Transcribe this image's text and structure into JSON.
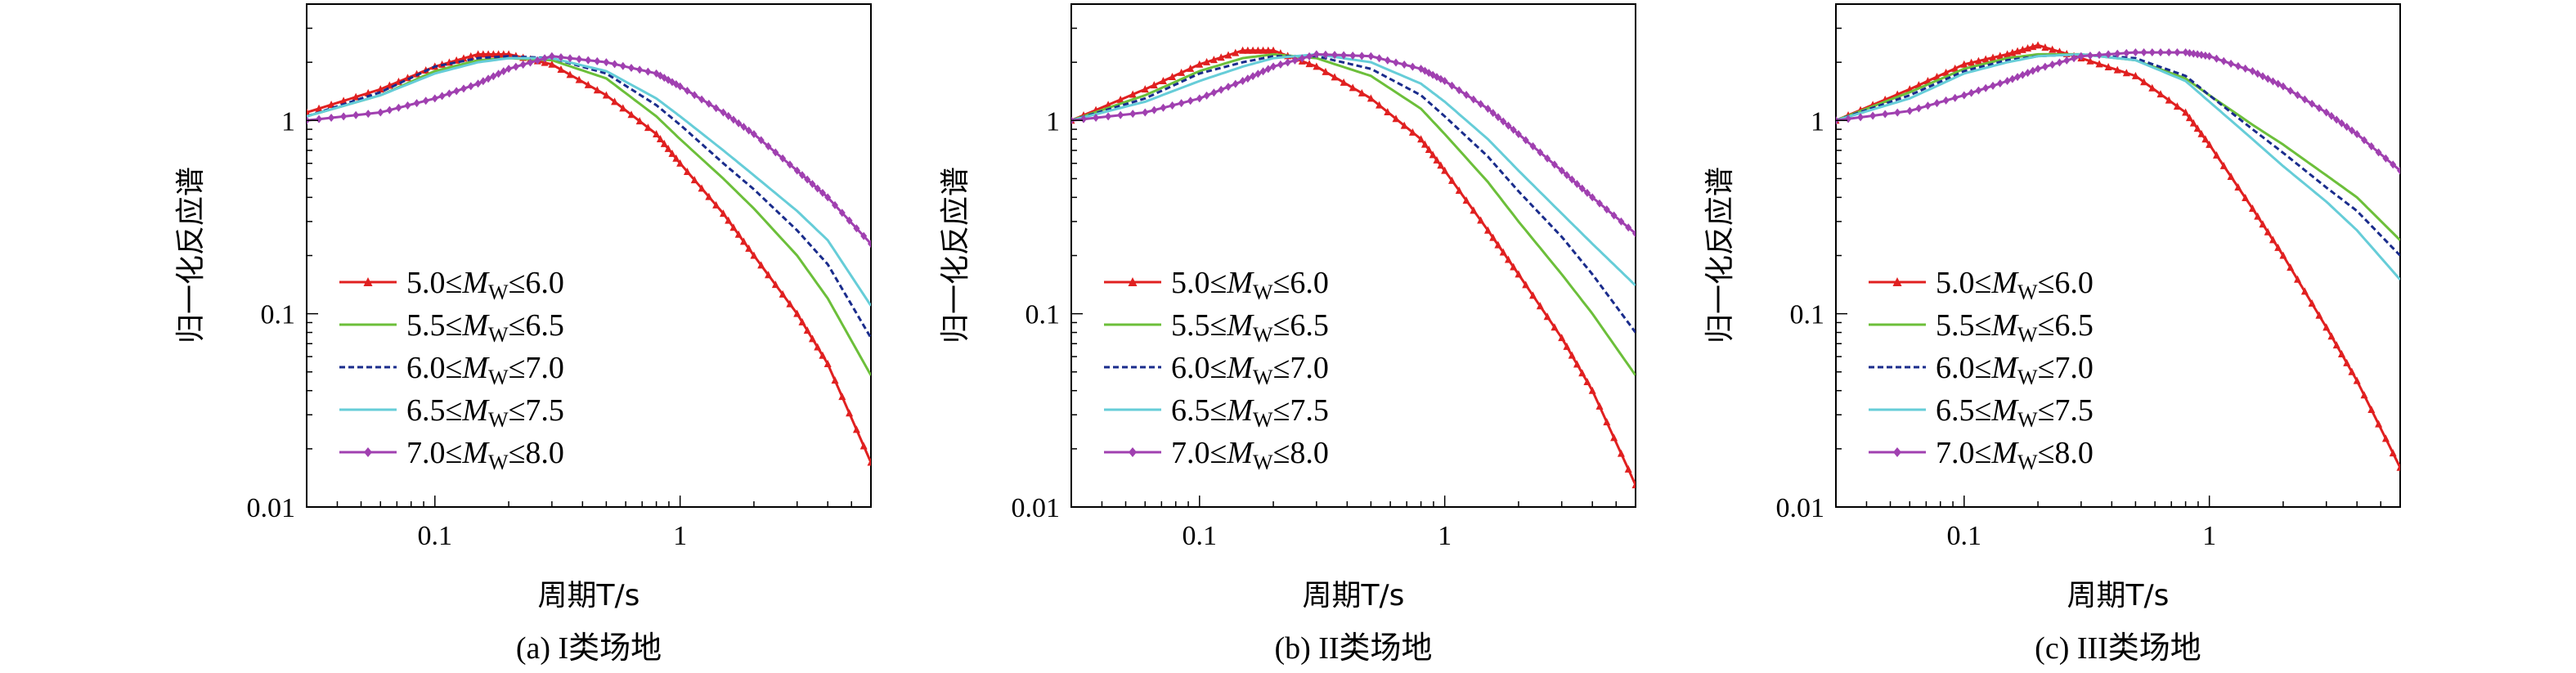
{
  "colors": {
    "red": "#e02020",
    "green": "#6cbf3a",
    "navy": "#1a2c8c",
    "cyan": "#66cdd8",
    "purple": "#a040b0"
  },
  "chart_data": [
    {
      "type": "line",
      "caption": "(a) I类场地",
      "xlabel": "周期T/s",
      "ylabel": "归一化反应谱",
      "x_scale": "log",
      "y_scale": "log",
      "xlim": [
        0.03,
        6
      ],
      "ylim": [
        0.01,
        4
      ],
      "xticks": [
        {
          "v": 0.1,
          "label": "0.1"
        },
        {
          "v": 1,
          "label": "1"
        }
      ],
      "yticks": [
        {
          "v": 0.01,
          "label": "0.01"
        },
        {
          "v": 0.1,
          "label": "0.1"
        },
        {
          "v": 1,
          "label": "1"
        }
      ],
      "legend_position": "lower-left",
      "series": [
        {
          "name": "5.0≤MW≤6.0",
          "color": "red",
          "marker": "triangle",
          "x": [
            0.03,
            0.06,
            0.1,
            0.15,
            0.2,
            0.3,
            0.5,
            0.8,
            1,
            1.5,
            2,
            3,
            4,
            6
          ],
          "y": [
            1.1,
            1.45,
            1.9,
            2.2,
            2.2,
            1.95,
            1.35,
            0.85,
            0.6,
            0.33,
            0.2,
            0.1,
            0.055,
            0.017
          ]
        },
        {
          "name": "5.5≤MW≤6.5",
          "color": "green",
          "marker": "none",
          "x": [
            0.03,
            0.06,
            0.1,
            0.15,
            0.2,
            0.3,
            0.5,
            0.8,
            1,
            1.5,
            2,
            3,
            4,
            6
          ],
          "y": [
            1.05,
            1.35,
            1.8,
            2.05,
            2.1,
            2.05,
            1.65,
            1.05,
            0.8,
            0.5,
            0.35,
            0.2,
            0.12,
            0.048
          ]
        },
        {
          "name": "6.0≤MW≤7.0",
          "color": "navy",
          "marker": "dash",
          "x": [
            0.03,
            0.06,
            0.1,
            0.15,
            0.2,
            0.3,
            0.5,
            0.8,
            1,
            1.5,
            2,
            3,
            4,
            6
          ],
          "y": [
            1.05,
            1.4,
            1.9,
            2.1,
            2.15,
            2.1,
            1.75,
            1.2,
            0.95,
            0.6,
            0.44,
            0.27,
            0.18,
            0.075
          ]
        },
        {
          "name": "6.5≤MW≤7.5",
          "color": "cyan",
          "marker": "none",
          "x": [
            0.03,
            0.06,
            0.1,
            0.15,
            0.2,
            0.3,
            0.5,
            0.8,
            1,
            1.5,
            2,
            3,
            4,
            6
          ],
          "y": [
            1.05,
            1.35,
            1.75,
            2.0,
            2.1,
            2.1,
            1.8,
            1.3,
            1.05,
            0.7,
            0.52,
            0.34,
            0.24,
            0.11
          ]
        },
        {
          "name": "7.0≤MW≤8.0",
          "color": "purple",
          "marker": "diamond",
          "x": [
            0.03,
            0.06,
            0.1,
            0.15,
            0.2,
            0.3,
            0.5,
            0.8,
            1,
            1.5,
            2,
            3,
            4,
            6
          ],
          "y": [
            1.0,
            1.1,
            1.3,
            1.55,
            1.85,
            2.15,
            2.0,
            1.75,
            1.5,
            1.1,
            0.85,
            0.55,
            0.4,
            0.23
          ]
        }
      ]
    },
    {
      "type": "line",
      "caption": "(b) II类场地",
      "xlabel": "周期T/s",
      "ylabel": "归一化反应谱",
      "x_scale": "log",
      "y_scale": "log",
      "xlim": [
        0.03,
        6
      ],
      "ylim": [
        0.01,
        4
      ],
      "xticks": [
        {
          "v": 0.1,
          "label": "0.1"
        },
        {
          "v": 1,
          "label": "1"
        }
      ],
      "yticks": [
        {
          "v": 0.01,
          "label": "0.01"
        },
        {
          "v": 0.1,
          "label": "0.1"
        },
        {
          "v": 1,
          "label": "1"
        }
      ],
      "legend_position": "lower-left",
      "series": [
        {
          "name": "5.0≤MW≤6.0",
          "color": "red",
          "marker": "triangle",
          "x": [
            0.03,
            0.06,
            0.1,
            0.15,
            0.2,
            0.3,
            0.5,
            0.8,
            1,
            1.5,
            2,
            3,
            4,
            6
          ],
          "y": [
            1.0,
            1.45,
            1.95,
            2.3,
            2.3,
            1.9,
            1.3,
            0.8,
            0.55,
            0.27,
            0.16,
            0.075,
            0.04,
            0.013
          ]
        },
        {
          "name": "5.5≤MW≤6.5",
          "color": "green",
          "marker": "none",
          "x": [
            0.03,
            0.06,
            0.1,
            0.15,
            0.2,
            0.3,
            0.5,
            0.8,
            1,
            1.5,
            2,
            3,
            4,
            6
          ],
          "y": [
            1.0,
            1.35,
            1.8,
            2.1,
            2.2,
            2.1,
            1.7,
            1.15,
            0.85,
            0.48,
            0.3,
            0.16,
            0.1,
            0.048
          ]
        },
        {
          "name": "6.0≤MW≤7.0",
          "color": "navy",
          "marker": "dash",
          "x": [
            0.03,
            0.06,
            0.1,
            0.15,
            0.2,
            0.3,
            0.5,
            0.8,
            1,
            1.5,
            2,
            3,
            4,
            6
          ],
          "y": [
            1.0,
            1.3,
            1.75,
            2.0,
            2.15,
            2.15,
            1.85,
            1.35,
            1.05,
            0.65,
            0.43,
            0.25,
            0.16,
            0.08
          ]
        },
        {
          "name": "6.5≤MW≤7.5",
          "color": "cyan",
          "marker": "none",
          "x": [
            0.03,
            0.06,
            0.1,
            0.15,
            0.2,
            0.3,
            0.5,
            0.8,
            1,
            1.5,
            2,
            3,
            4,
            6
          ],
          "y": [
            1.0,
            1.25,
            1.6,
            1.9,
            2.1,
            2.2,
            2.0,
            1.55,
            1.25,
            0.8,
            0.55,
            0.33,
            0.23,
            0.14
          ]
        },
        {
          "name": "7.0≤MW≤8.0",
          "color": "purple",
          "marker": "diamond",
          "x": [
            0.03,
            0.06,
            0.1,
            0.15,
            0.2,
            0.3,
            0.5,
            0.8,
            1,
            1.5,
            2,
            3,
            4,
            6
          ],
          "y": [
            1.0,
            1.1,
            1.3,
            1.6,
            1.9,
            2.2,
            2.15,
            1.85,
            1.6,
            1.15,
            0.85,
            0.55,
            0.4,
            0.26
          ]
        }
      ]
    },
    {
      "type": "line",
      "caption": "(c) III类场地",
      "xlabel": "周期T/s",
      "ylabel": "归一化反应谱",
      "x_scale": "log",
      "y_scale": "log",
      "xlim": [
        0.03,
        6
      ],
      "ylim": [
        0.01,
        4
      ],
      "xticks": [
        {
          "v": 0.1,
          "label": "0.1"
        },
        {
          "v": 1,
          "label": "1"
        }
      ],
      "yticks": [
        {
          "v": 0.01,
          "label": "0.01"
        },
        {
          "v": 0.1,
          "label": "0.1"
        },
        {
          "v": 1,
          "label": "1"
        }
      ],
      "legend_position": "lower-left",
      "series": [
        {
          "name": "5.0≤MW≤6.0",
          "color": "red",
          "marker": "triangle",
          "x": [
            0.03,
            0.06,
            0.1,
            0.15,
            0.2,
            0.3,
            0.5,
            0.8,
            1,
            1.5,
            2,
            3,
            4,
            6
          ],
          "y": [
            1.0,
            1.45,
            1.95,
            2.2,
            2.45,
            2.1,
            1.7,
            1.1,
            0.75,
            0.35,
            0.2,
            0.085,
            0.045,
            0.016
          ]
        },
        {
          "name": "5.5≤MW≤6.5",
          "color": "green",
          "marker": "none",
          "x": [
            0.03,
            0.06,
            0.1,
            0.15,
            0.2,
            0.3,
            0.5,
            0.8,
            1,
            1.5,
            2,
            3,
            4,
            6
          ],
          "y": [
            1.0,
            1.4,
            1.85,
            2.1,
            2.2,
            2.2,
            2.05,
            1.65,
            1.35,
            0.95,
            0.75,
            0.52,
            0.4,
            0.24
          ]
        },
        {
          "name": "6.0≤MW≤7.0",
          "color": "navy",
          "marker": "dash",
          "x": [
            0.03,
            0.06,
            0.1,
            0.15,
            0.2,
            0.3,
            0.5,
            0.8,
            1,
            1.5,
            2,
            3,
            4,
            6
          ],
          "y": [
            1.0,
            1.35,
            1.8,
            2.05,
            2.15,
            2.2,
            2.1,
            1.7,
            1.35,
            0.9,
            0.68,
            0.45,
            0.34,
            0.2
          ]
        },
        {
          "name": "6.5≤MW≤7.5",
          "color": "cyan",
          "marker": "none",
          "x": [
            0.03,
            0.06,
            0.1,
            0.15,
            0.2,
            0.3,
            0.5,
            0.8,
            1,
            1.5,
            2,
            3,
            4,
            6
          ],
          "y": [
            1.0,
            1.3,
            1.75,
            2.0,
            2.15,
            2.2,
            2.05,
            1.6,
            1.25,
            0.8,
            0.58,
            0.38,
            0.27,
            0.15
          ]
        },
        {
          "name": "7.0≤MW≤8.0",
          "color": "purple",
          "marker": "diamond",
          "x": [
            0.03,
            0.06,
            0.1,
            0.15,
            0.2,
            0.3,
            0.5,
            0.8,
            1,
            1.5,
            2,
            3,
            4,
            6
          ],
          "y": [
            1.0,
            1.12,
            1.35,
            1.6,
            1.85,
            2.15,
            2.25,
            2.25,
            2.15,
            1.8,
            1.5,
            1.1,
            0.85,
            0.55
          ]
        }
      ]
    }
  ]
}
